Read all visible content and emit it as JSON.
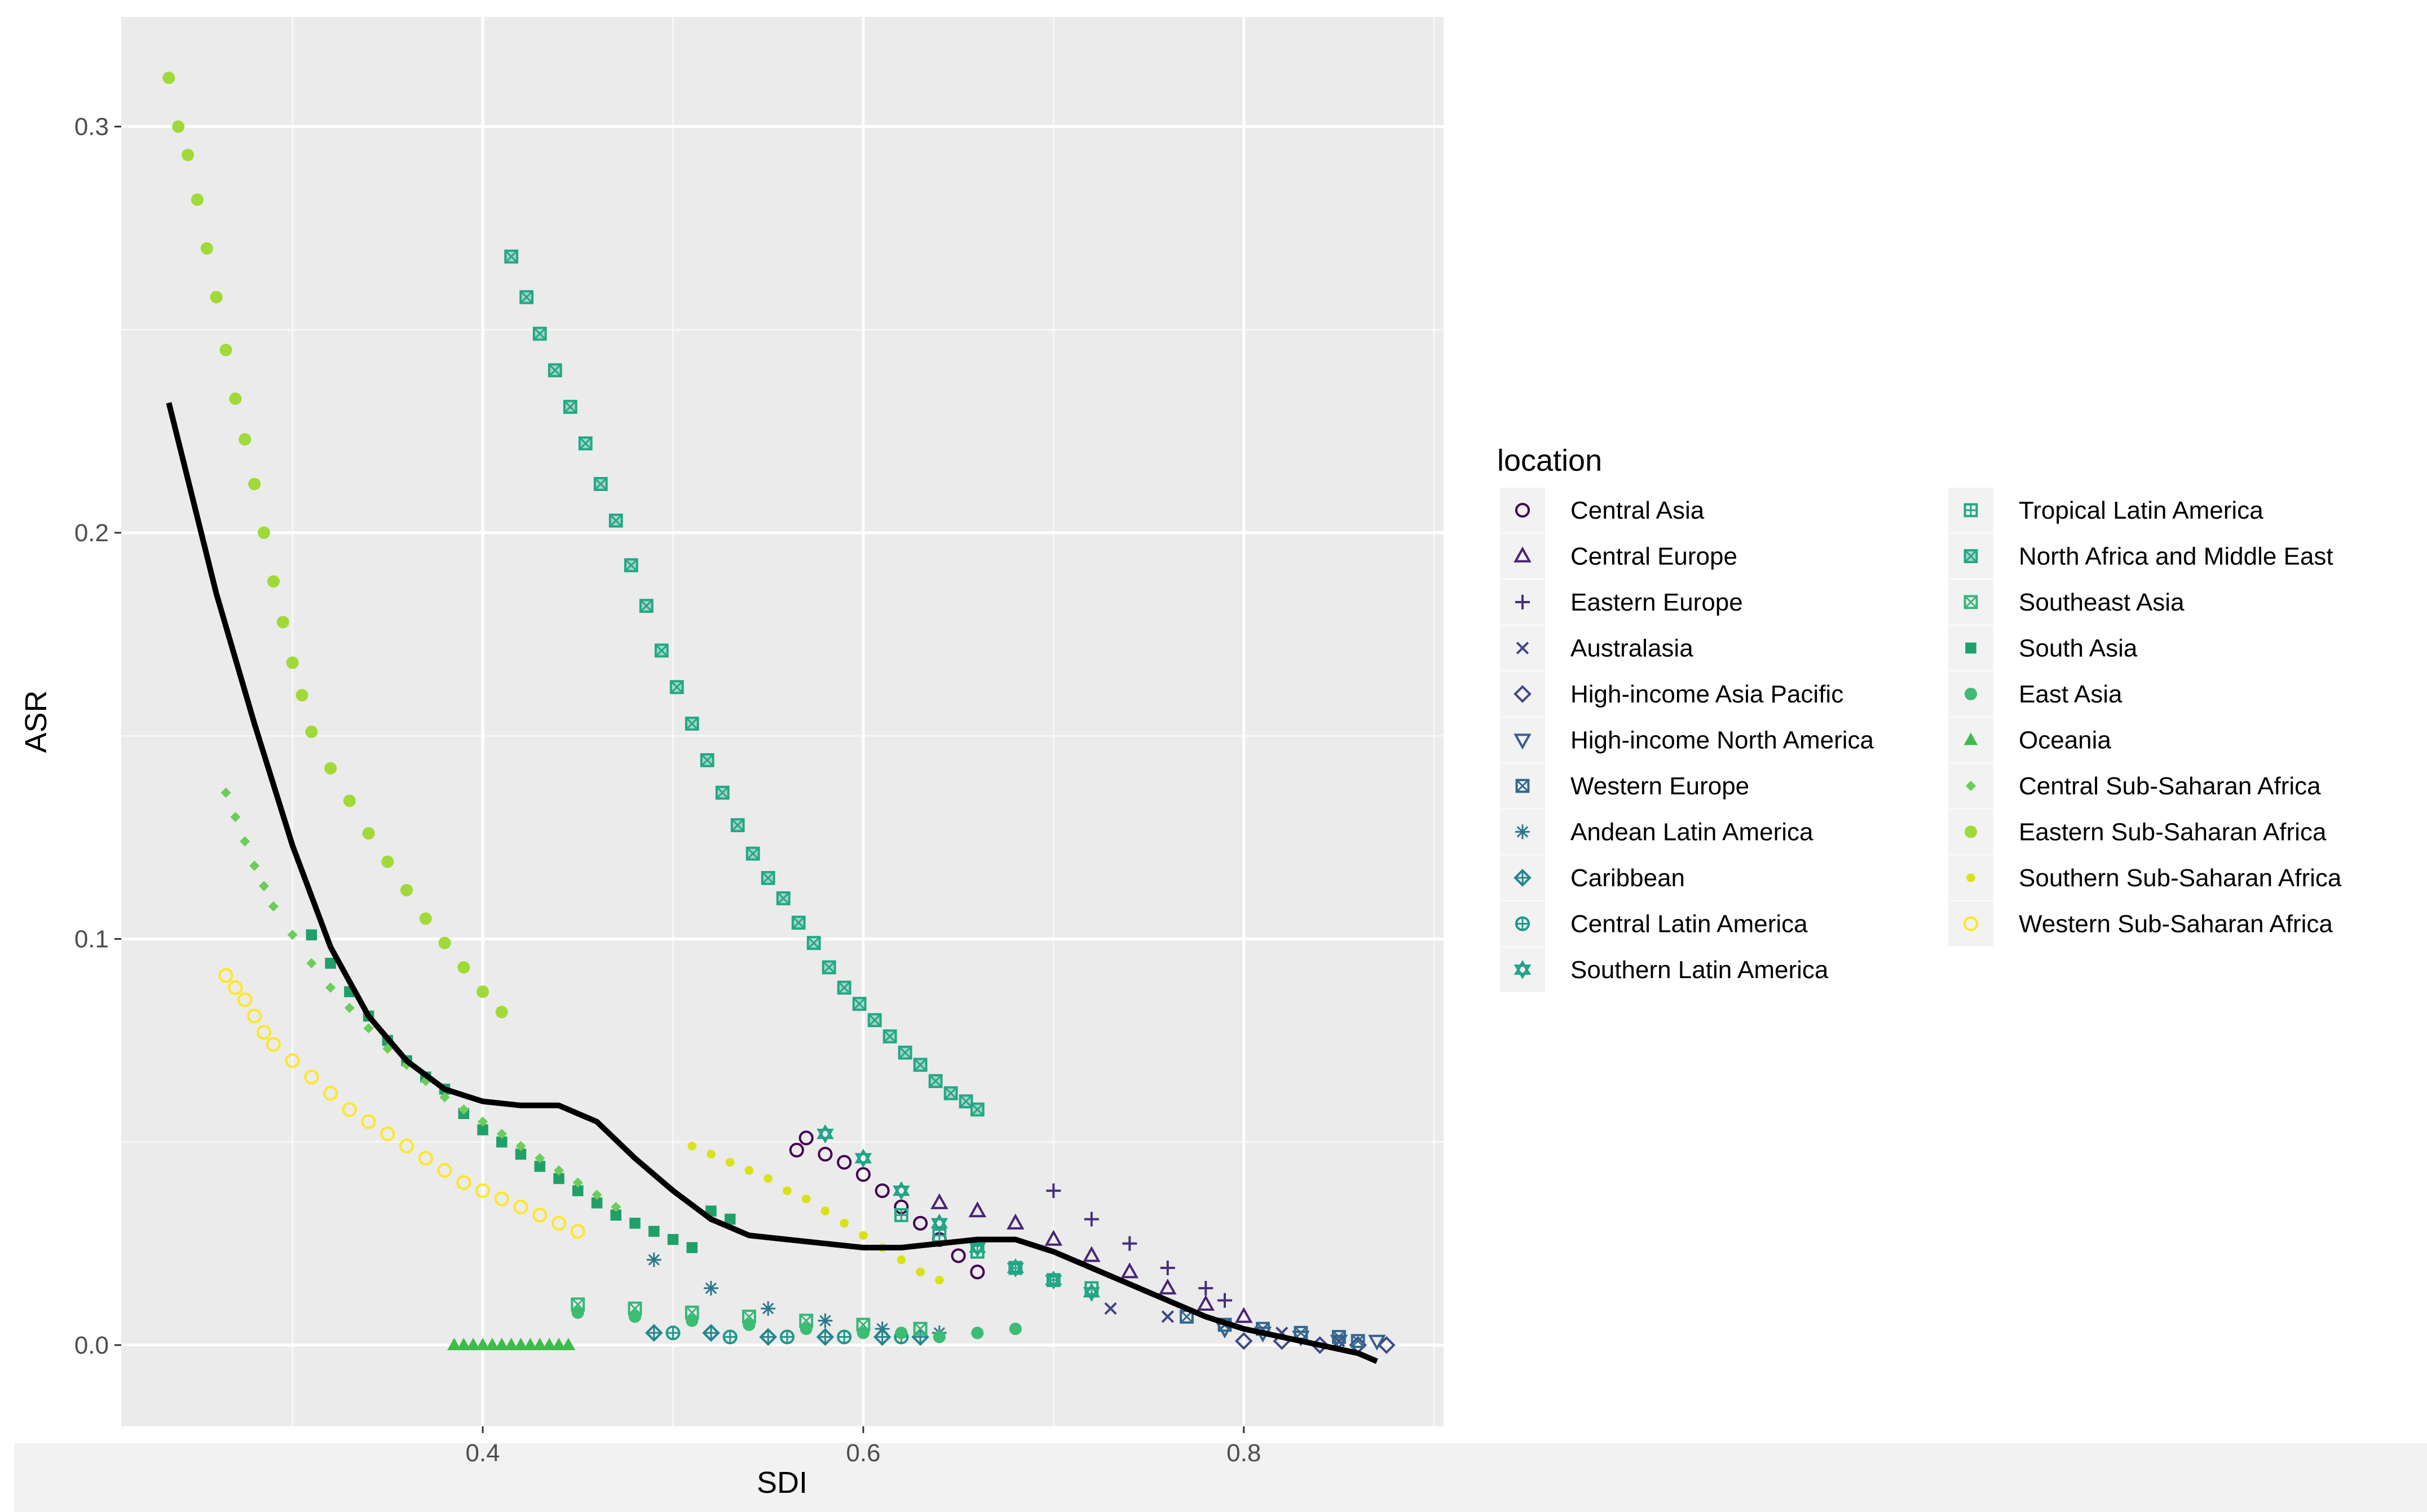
{
  "chart_data": {
    "type": "scatter",
    "title": "",
    "xlabel": "SDI",
    "ylabel": "ASR",
    "xlim": [
      0.21,
      0.905
    ],
    "ylim": [
      -0.02,
      0.327
    ],
    "x_ticks": [
      {
        "value": 0.4,
        "label": "0.4"
      },
      {
        "value": 0.6,
        "label": "0.6"
      },
      {
        "value": 0.8,
        "label": "0.8"
      }
    ],
    "y_ticks": [
      {
        "value": 0.0,
        "label": "0.0"
      },
      {
        "value": 0.1,
        "label": "0.1"
      },
      {
        "value": 0.2,
        "label": "0.2"
      },
      {
        "value": 0.3,
        "label": "0.3"
      }
    ],
    "grid": true,
    "legend": {
      "title": "location",
      "placement": "right",
      "columns": 2
    },
    "series": [
      {
        "name": "Central Asia",
        "marker": "circle-open",
        "color": "#440154",
        "x": [
          0.565,
          0.57,
          0.58,
          0.59,
          0.6,
          0.61,
          0.62,
          0.63,
          0.64,
          0.65,
          0.66
        ],
        "y": [
          0.048,
          0.051,
          0.047,
          0.045,
          0.042,
          0.038,
          0.034,
          0.03,
          0.026,
          0.022,
          0.018
        ]
      },
      {
        "name": "Central Europe",
        "marker": "triangle-open",
        "color": "#482475",
        "x": [
          0.64,
          0.66,
          0.68,
          0.7,
          0.72,
          0.74,
          0.76,
          0.78,
          0.8
        ],
        "y": [
          0.035,
          0.033,
          0.03,
          0.026,
          0.022,
          0.018,
          0.014,
          0.01,
          0.007
        ]
      },
      {
        "name": "Eastern Europe",
        "marker": "plus",
        "color": "#472f7d",
        "x": [
          0.7,
          0.72,
          0.74,
          0.76,
          0.78,
          0.79
        ],
        "y": [
          0.038,
          0.031,
          0.025,
          0.019,
          0.014,
          0.011
        ]
      },
      {
        "name": "Australasia",
        "marker": "x",
        "color": "#414487",
        "x": [
          0.73,
          0.76,
          0.79,
          0.82,
          0.85
        ],
        "y": [
          0.009,
          0.007,
          0.005,
          0.003,
          0.001
        ]
      },
      {
        "name": "High-income Asia Pacific",
        "marker": "diamond-open",
        "color": "#3e4989",
        "x": [
          0.8,
          0.82,
          0.84,
          0.86,
          0.875
        ],
        "y": [
          0.001,
          0.001,
          0.0,
          0.0,
          0.0
        ]
      },
      {
        "name": "High-income North America",
        "marker": "triangle-down-open",
        "color": "#355f8d",
        "x": [
          0.79,
          0.81,
          0.83,
          0.85,
          0.87
        ],
        "y": [
          0.004,
          0.003,
          0.002,
          0.001,
          0.001
        ]
      },
      {
        "name": "Western Europe",
        "marker": "square-x",
        "color": "#31688e",
        "x": [
          0.77,
          0.79,
          0.81,
          0.83,
          0.85,
          0.86
        ],
        "y": [
          0.007,
          0.005,
          0.004,
          0.003,
          0.002,
          0.001
        ]
      },
      {
        "name": "Andean Latin America",
        "marker": "asterisk",
        "color": "#2a788e",
        "x": [
          0.49,
          0.52,
          0.55,
          0.58,
          0.61,
          0.64
        ],
        "y": [
          0.021,
          0.014,
          0.009,
          0.006,
          0.004,
          0.003
        ]
      },
      {
        "name": "Caribbean",
        "marker": "diamond-plus",
        "color": "#25858e",
        "x": [
          0.49,
          0.52,
          0.55,
          0.58,
          0.61,
          0.63
        ],
        "y": [
          0.003,
          0.003,
          0.002,
          0.002,
          0.002,
          0.002
        ]
      },
      {
        "name": "Central Latin America",
        "marker": "circle-plus",
        "color": "#1f988b",
        "x": [
          0.5,
          0.53,
          0.56,
          0.59,
          0.62
        ],
        "y": [
          0.003,
          0.002,
          0.002,
          0.002,
          0.002
        ]
      },
      {
        "name": "Southern Latin America",
        "marker": "star",
        "color": "#20a386",
        "x": [
          0.58,
          0.6,
          0.62,
          0.64,
          0.66,
          0.68,
          0.7,
          0.72
        ],
        "y": [
          0.052,
          0.046,
          0.038,
          0.03,
          0.024,
          0.019,
          0.016,
          0.013
        ]
      },
      {
        "name": "Tropical Latin America",
        "marker": "square-plus",
        "color": "#22a884",
        "x": [
          0.62,
          0.64,
          0.66,
          0.68,
          0.7,
          0.72
        ],
        "y": [
          0.032,
          0.027,
          0.023,
          0.019,
          0.016,
          0.014
        ]
      },
      {
        "name": "North Africa and Middle East",
        "marker": "square-x-fill",
        "color": "#22a884",
        "x": [
          0.415,
          0.423,
          0.43,
          0.438,
          0.446,
          0.454,
          0.462,
          0.47,
          0.478,
          0.486,
          0.494,
          0.502,
          0.51,
          0.518,
          0.526,
          0.534,
          0.542,
          0.55,
          0.558,
          0.566,
          0.574,
          0.582,
          0.59,
          0.598,
          0.606,
          0.614,
          0.622,
          0.63,
          0.638,
          0.646,
          0.654,
          0.66
        ],
        "y": [
          0.268,
          0.258,
          0.249,
          0.24,
          0.231,
          0.222,
          0.212,
          0.203,
          0.192,
          0.182,
          0.171,
          0.162,
          0.153,
          0.144,
          0.136,
          0.128,
          0.121,
          0.115,
          0.11,
          0.104,
          0.099,
          0.093,
          0.088,
          0.084,
          0.08,
          0.076,
          0.072,
          0.069,
          0.065,
          0.062,
          0.06,
          0.058
        ]
      },
      {
        "name": "Southeast Asia",
        "marker": "square-x-open",
        "color": "#35b779",
        "x": [
          0.45,
          0.48,
          0.51,
          0.54,
          0.57,
          0.6,
          0.63
        ],
        "y": [
          0.01,
          0.009,
          0.008,
          0.007,
          0.006,
          0.005,
          0.004
        ]
      },
      {
        "name": "South Asia",
        "marker": "square",
        "color": "#1fa068",
        "x": [
          0.31,
          0.32,
          0.33,
          0.34,
          0.35,
          0.36,
          0.37,
          0.38,
          0.39,
          0.4,
          0.41,
          0.42,
          0.43,
          0.44,
          0.45,
          0.46,
          0.47,
          0.48,
          0.49,
          0.5,
          0.51,
          0.52,
          0.53
        ],
        "y": [
          0.101,
          0.094,
          0.087,
          0.081,
          0.075,
          0.07,
          0.066,
          0.063,
          0.057,
          0.053,
          0.05,
          0.047,
          0.044,
          0.041,
          0.038,
          0.035,
          0.032,
          0.03,
          0.028,
          0.026,
          0.024,
          0.033,
          0.031
        ]
      },
      {
        "name": "East Asia",
        "marker": "circle",
        "color": "#3dbc74",
        "x": [
          0.45,
          0.48,
          0.51,
          0.54,
          0.57,
          0.6,
          0.62,
          0.64,
          0.66,
          0.68
        ],
        "y": [
          0.008,
          0.007,
          0.006,
          0.005,
          0.004,
          0.003,
          0.003,
          0.002,
          0.003,
          0.004
        ]
      },
      {
        "name": "Oceania",
        "marker": "triangle",
        "color": "#3dbc4c",
        "x": [
          0.385,
          0.39,
          0.395,
          0.4,
          0.405,
          0.41,
          0.415,
          0.42,
          0.425,
          0.43,
          0.435,
          0.44,
          0.445
        ],
        "y": [
          0.0,
          0.0,
          0.0,
          0.0,
          0.0,
          0.0,
          0.0,
          0.0,
          0.0,
          0.0,
          0.0,
          0.0,
          0.0
        ]
      },
      {
        "name": "Central Sub-Saharan Africa",
        "marker": "diamond-small",
        "color": "#6ccd5a",
        "x": [
          0.265,
          0.27,
          0.275,
          0.28,
          0.285,
          0.29,
          0.3,
          0.31,
          0.32,
          0.33,
          0.34,
          0.35,
          0.36,
          0.37,
          0.38,
          0.39,
          0.4,
          0.41,
          0.42,
          0.43,
          0.44,
          0.45,
          0.46,
          0.47
        ],
        "y": [
          0.136,
          0.13,
          0.124,
          0.118,
          0.113,
          0.108,
          0.101,
          0.094,
          0.088,
          0.083,
          0.078,
          0.073,
          0.069,
          0.065,
          0.061,
          0.058,
          0.055,
          0.052,
          0.049,
          0.046,
          0.043,
          0.04,
          0.037,
          0.034
        ]
      },
      {
        "name": "Eastern Sub-Saharan Africa",
        "marker": "circle",
        "color": "#a0da39",
        "x": [
          0.235,
          0.24,
          0.245,
          0.25,
          0.255,
          0.26,
          0.265,
          0.27,
          0.275,
          0.28,
          0.285,
          0.29,
          0.295,
          0.3,
          0.305,
          0.31,
          0.32,
          0.33,
          0.34,
          0.35,
          0.36,
          0.37,
          0.38,
          0.39,
          0.4,
          0.41
        ],
        "y": [
          0.312,
          0.3,
          0.293,
          0.282,
          0.27,
          0.258,
          0.245,
          0.233,
          0.223,
          0.212,
          0.2,
          0.188,
          0.178,
          0.168,
          0.16,
          0.151,
          0.142,
          0.134,
          0.126,
          0.119,
          0.112,
          0.105,
          0.099,
          0.093,
          0.087,
          0.082
        ]
      },
      {
        "name": "Southern Sub-Saharan Africa",
        "marker": "circle-small",
        "color": "#d8e219",
        "x": [
          0.51,
          0.52,
          0.53,
          0.54,
          0.55,
          0.56,
          0.57,
          0.58,
          0.59,
          0.6,
          0.61,
          0.62,
          0.63,
          0.64
        ],
        "y": [
          0.049,
          0.047,
          0.045,
          0.043,
          0.041,
          0.038,
          0.036,
          0.033,
          0.03,
          0.027,
          0.024,
          0.021,
          0.018,
          0.016
        ]
      },
      {
        "name": "Western Sub-Saharan Africa",
        "marker": "circle-open",
        "color": "#fde725",
        "x": [
          0.265,
          0.27,
          0.275,
          0.28,
          0.285,
          0.29,
          0.3,
          0.31,
          0.32,
          0.33,
          0.34,
          0.35,
          0.36,
          0.37,
          0.38,
          0.39,
          0.4,
          0.41,
          0.42,
          0.43,
          0.44,
          0.45
        ],
        "y": [
          0.091,
          0.088,
          0.085,
          0.081,
          0.077,
          0.074,
          0.07,
          0.066,
          0.062,
          0.058,
          0.055,
          0.052,
          0.049,
          0.046,
          0.043,
          0.04,
          0.038,
          0.036,
          0.034,
          0.032,
          0.03,
          0.028
        ]
      }
    ],
    "trend_line": {
      "name": "smooth fit",
      "color": "#000000",
      "x": [
        0.235,
        0.26,
        0.28,
        0.3,
        0.32,
        0.34,
        0.36,
        0.38,
        0.4,
        0.42,
        0.44,
        0.46,
        0.48,
        0.5,
        0.52,
        0.54,
        0.56,
        0.58,
        0.6,
        0.62,
        0.64,
        0.66,
        0.68,
        0.7,
        0.72,
        0.74,
        0.76,
        0.78,
        0.8,
        0.82,
        0.84,
        0.86,
        0.87
      ],
      "y": [
        0.232,
        0.185,
        0.153,
        0.123,
        0.098,
        0.081,
        0.07,
        0.063,
        0.06,
        0.059,
        0.059,
        0.055,
        0.046,
        0.038,
        0.031,
        0.027,
        0.026,
        0.025,
        0.024,
        0.024,
        0.025,
        0.026,
        0.026,
        0.023,
        0.019,
        0.015,
        0.011,
        0.007,
        0.004,
        0.002,
        0.0,
        -0.002,
        -0.004
      ]
    }
  }
}
